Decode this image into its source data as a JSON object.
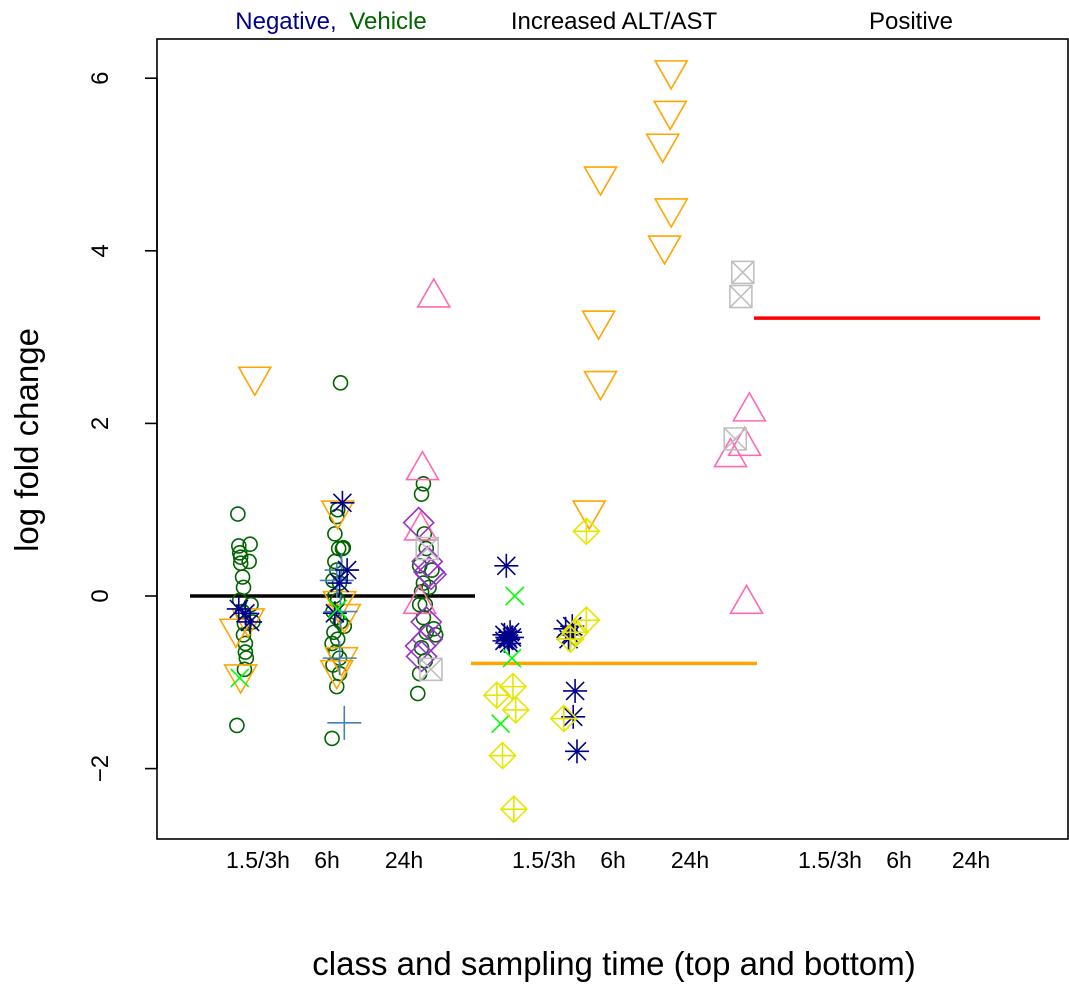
{
  "chart_data": {
    "type": "scatter",
    "title": "",
    "xlabel": "class and sampling time (top and bottom)",
    "ylabel": "log fold change",
    "ylim": [
      -2.8,
      6.5
    ],
    "yticks": [
      -2,
      0,
      2,
      4,
      6
    ],
    "grid": false,
    "legend": "top (colored class labels above plot)",
    "class_labels": [
      {
        "text": "Negative,",
        "color": "#00008B"
      },
      {
        "text": "Vehicle",
        "color": "#006400"
      },
      {
        "text": "Increased ALT/AST",
        "color": "#FFA500"
      },
      {
        "text": "Positive",
        "color": "#FF0000"
      }
    ],
    "time_labels": [
      "1.5/3h",
      "6h",
      "24h",
      "1.5/3h",
      "6h",
      "24h",
      "1.5/3h",
      "6h",
      "24h"
    ],
    "medians": [
      {
        "group": "Negative, Vehicle",
        "value": 0.0,
        "color": "#000000"
      },
      {
        "group": "Increased ALT/AST",
        "value": -0.78,
        "color": "#FFA500"
      },
      {
        "group": "Positive",
        "value": 3.22,
        "color": "#FF0000"
      }
    ],
    "series": [
      {
        "symbol": "circle",
        "color": "#006400",
        "group": "Negative, Vehicle",
        "points": [
          [
            0.87,
            0.95
          ],
          [
            0.88,
            0.58
          ],
          [
            0.89,
            0.5
          ],
          [
            0.9,
            0.45
          ],
          [
            0.9,
            0.38
          ],
          [
            0.92,
            0.22
          ],
          [
            0.93,
            0.1
          ],
          [
            0.89,
            -0.05
          ],
          [
            0.92,
            -0.18
          ],
          [
            0.94,
            -0.32
          ],
          [
            0.93,
            -0.45
          ],
          [
            0.95,
            -0.55
          ],
          [
            0.95,
            -0.65
          ],
          [
            0.96,
            -0.72
          ],
          [
            0.94,
            -0.85
          ],
          [
            0.86,
            -1.5
          ],
          [
            1.0,
            0.6
          ],
          [
            0.99,
            0.4
          ],
          [
            1.01,
            -0.1
          ],
          [
            1.03,
            -0.3
          ],
          [
            1.96,
            2.47
          ],
          [
            1.93,
            1.0
          ],
          [
            1.92,
            0.92
          ],
          [
            1.9,
            0.72
          ],
          [
            1.94,
            0.55
          ],
          [
            1.98,
            0.55
          ],
          [
            1.9,
            0.4
          ],
          [
            1.92,
            0.3
          ],
          [
            1.88,
            0.18
          ],
          [
            1.95,
            0.15
          ],
          [
            1.9,
            0.0
          ],
          [
            1.93,
            -0.05
          ],
          [
            1.88,
            -0.18
          ],
          [
            1.92,
            -0.25
          ],
          [
            1.96,
            -0.3
          ],
          [
            1.89,
            -0.42
          ],
          [
            1.93,
            -0.5
          ],
          [
            1.87,
            -0.55
          ],
          [
            1.91,
            -0.65
          ],
          [
            1.95,
            -0.72
          ],
          [
            1.88,
            -0.8
          ],
          [
            1.95,
            -0.9
          ],
          [
            1.92,
            -1.05
          ],
          [
            1.87,
            -1.65
          ],
          [
            1.99,
            0.56
          ],
          [
            2.0,
            -0.35
          ],
          [
            2.84,
            1.3
          ],
          [
            2.82,
            1.18
          ],
          [
            2.85,
            0.72
          ],
          [
            2.87,
            0.55
          ],
          [
            2.8,
            0.35
          ],
          [
            2.84,
            0.15
          ],
          [
            2.82,
            0.05
          ],
          [
            2.8,
            -0.1
          ],
          [
            2.86,
            -0.1
          ],
          [
            2.84,
            -0.25
          ],
          [
            2.87,
            -0.42
          ],
          [
            2.82,
            -0.6
          ],
          [
            2.86,
            -0.75
          ],
          [
            2.8,
            -0.9
          ],
          [
            2.78,
            -1.13
          ],
          [
            2.9,
            0.1
          ],
          [
            2.93,
            0.3
          ],
          [
            2.95,
            -0.38
          ],
          [
            2.97,
            -0.45
          ]
        ]
      },
      {
        "symbol": "triangle-down",
        "color": "#FFA500",
        "group": "all",
        "points": [
          [
            1.05,
            2.5
          ],
          [
            0.85,
            -0.42
          ],
          [
            0.9,
            -0.95
          ],
          [
            0.98,
            -0.3
          ],
          [
            1.93,
            0.95
          ],
          [
            1.95,
            -0.1
          ],
          [
            2.0,
            -0.25
          ],
          [
            1.97,
            -0.75
          ],
          [
            1.92,
            -0.9
          ],
          [
            4.6,
            0.95
          ],
          [
            4.72,
            4.82
          ],
          [
            4.7,
            3.15
          ],
          [
            4.72,
            2.45
          ],
          [
            5.47,
            6.05
          ],
          [
            5.46,
            5.58
          ],
          [
            5.38,
            5.2
          ],
          [
            5.47,
            4.45
          ],
          [
            5.4,
            4.02
          ]
        ]
      },
      {
        "symbol": "triangle-up",
        "color": "#FF69B4",
        "group": "all",
        "points": [
          [
            2.95,
            3.5
          ],
          [
            2.83,
            1.5
          ],
          [
            2.81,
            0.8
          ],
          [
            2.8,
            -0.05
          ],
          [
            6.3,
            2.18
          ],
          [
            6.25,
            1.78
          ],
          [
            6.1,
            1.65
          ],
          [
            6.27,
            -0.05
          ]
        ]
      },
      {
        "symbol": "diamond",
        "color": "#9932CC",
        "group": "Negative, Vehicle",
        "points": [
          [
            2.79,
            0.85
          ],
          [
            2.88,
            0.4
          ],
          [
            2.9,
            0.28
          ],
          [
            2.92,
            0.25
          ],
          [
            2.87,
            -0.3
          ],
          [
            2.81,
            -0.58
          ],
          [
            2.88,
            -0.5
          ],
          [
            2.82,
            -0.7
          ]
        ]
      },
      {
        "symbol": "boxed-x",
        "color": "#C0C0C0",
        "group": "all",
        "points": [
          [
            2.88,
            0.55
          ],
          [
            2.92,
            -0.85
          ],
          [
            6.23,
            3.75
          ],
          [
            6.21,
            3.47
          ],
          [
            6.15,
            1.82
          ]
        ]
      },
      {
        "symbol": "plus",
        "color": "#4682B4",
        "group": "Negative, Vehicle",
        "points": [
          [
            1.92,
            0.18
          ],
          [
            1.97,
            0.3
          ],
          [
            2.0,
            -1.47
          ],
          [
            1.95,
            -0.72
          ],
          [
            1.96,
            -0.18
          ]
        ]
      },
      {
        "symbol": "asterisk",
        "color": "#00008B",
        "group": "all",
        "points": [
          [
            0.88,
            -0.15
          ],
          [
            0.95,
            -0.2
          ],
          [
            1.0,
            -0.3
          ],
          [
            1.98,
            1.08
          ],
          [
            2.03,
            0.3
          ],
          [
            1.9,
            -0.2
          ],
          [
            1.95,
            0.15
          ],
          [
            3.72,
            0.35
          ],
          [
            3.7,
            -0.45
          ],
          [
            3.73,
            -0.48
          ],
          [
            3.76,
            -0.42
          ],
          [
            3.74,
            -0.5
          ],
          [
            3.78,
            -0.48
          ],
          [
            3.7,
            -0.52
          ],
          [
            3.75,
            -0.55
          ],
          [
            4.35,
            -0.38
          ],
          [
            4.38,
            -0.5
          ],
          [
            4.42,
            -0.35
          ],
          [
            4.45,
            -1.1
          ],
          [
            4.43,
            -1.4
          ],
          [
            4.47,
            -1.8
          ],
          [
            4.4,
            -0.45
          ]
        ]
      },
      {
        "symbol": "x",
        "color": "#00FF00",
        "group": "all",
        "points": [
          [
            0.89,
            -0.95
          ],
          [
            1.93,
            -0.15
          ],
          [
            3.81,
            0.0
          ],
          [
            3.78,
            -0.72
          ],
          [
            3.66,
            -1.48
          ]
        ]
      },
      {
        "symbol": "circle-plus",
        "color": "#E6E600",
        "group": "Increased ALT/AST",
        "points": [
          [
            4.57,
            0.75
          ],
          [
            4.57,
            -0.28
          ],
          [
            4.45,
            -0.42
          ],
          [
            4.4,
            -0.5
          ],
          [
            3.62,
            -1.15
          ],
          [
            3.79,
            -1.05
          ],
          [
            3.82,
            -1.32
          ],
          [
            3.68,
            -1.85
          ],
          [
            3.8,
            -2.47
          ],
          [
            4.33,
            -1.42
          ]
        ]
      }
    ]
  }
}
